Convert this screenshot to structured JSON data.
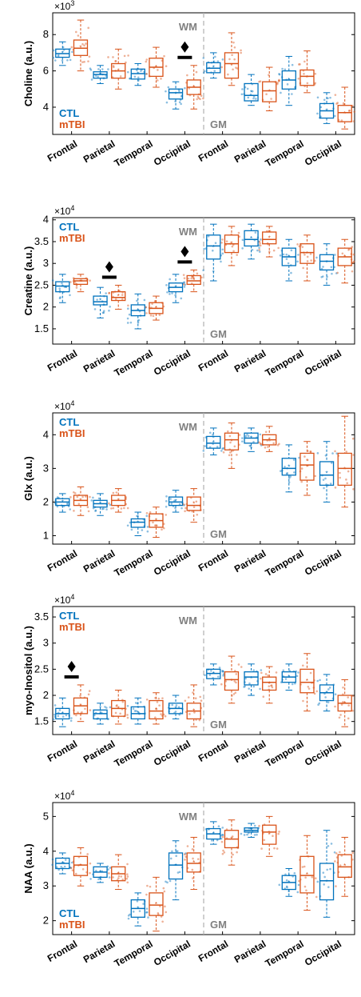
{
  "colors": {
    "ctl": "#0072BD",
    "mtbi": "#D95319",
    "divider": "#b0b0b0",
    "region_label": "#808080",
    "axis": "#000000"
  },
  "legend": {
    "ctl": "CTL",
    "mtbi": "mTBI"
  },
  "region_labels": {
    "wm": "WM",
    "gm": "GM"
  },
  "chart_data": [
    {
      "type": "box",
      "title": "",
      "ylabel": "Choline (a.u.)",
      "scale_label": "×10",
      "scale_exp": "3",
      "ylim": [
        2.5,
        9.2
      ],
      "yticks": [
        4,
        6,
        8
      ],
      "categories": [
        "Frontal",
        "Parietal",
        "Temporal",
        "Occipital",
        "Frontal",
        "Parietal",
        "Temporal",
        "Occipital"
      ],
      "regions": [
        "WM",
        "WM",
        "WM",
        "WM",
        "GM",
        "GM",
        "GM",
        "GM"
      ],
      "significance": [
        3
      ],
      "series": [
        {
          "name": "CTL",
          "boxes": [
            [
              6.3,
              6.75,
              6.95,
              7.2,
              7.6
            ],
            [
              5.3,
              5.6,
              5.8,
              5.95,
              6.3
            ],
            [
              5.2,
              5.55,
              5.85,
              6.1,
              6.4
            ],
            [
              3.9,
              4.45,
              4.8,
              5.0,
              5.4
            ],
            [
              5.6,
              5.9,
              6.15,
              6.45,
              7.0
            ],
            [
              4.1,
              4.35,
              4.65,
              5.3,
              5.8
            ],
            [
              4.1,
              5.0,
              5.5,
              6.0,
              6.8
            ],
            [
              3.1,
              3.4,
              3.8,
              4.2,
              4.8
            ]
          ]
        },
        {
          "name": "mTBI",
          "boxes": [
            [
              6.0,
              6.85,
              7.25,
              7.7,
              8.8
            ],
            [
              5.0,
              5.6,
              6.0,
              6.4,
              7.2
            ],
            [
              5.1,
              5.7,
              6.2,
              6.7,
              7.3
            ],
            [
              3.9,
              4.7,
              5.1,
              5.5,
              6.3
            ],
            [
              5.2,
              5.6,
              6.4,
              7.0,
              8.1
            ],
            [
              3.8,
              4.3,
              4.9,
              5.4,
              6.2
            ],
            [
              4.8,
              5.2,
              5.7,
              6.05,
              7.1
            ],
            [
              2.8,
              3.2,
              3.7,
              4.1,
              5.1
            ]
          ]
        }
      ]
    },
    {
      "type": "box",
      "title": "",
      "ylabel": "Creatine (a.u.)",
      "scale_label": "×10",
      "scale_exp": "4",
      "ylim": [
        1.15,
        4.05
      ],
      "yticks": [
        1.5,
        2,
        2.5,
        3,
        3.5,
        4
      ],
      "categories": [
        "Frontal",
        "Parietal",
        "Temporal",
        "Occipital",
        "Frontal",
        "Parietal",
        "Temporal",
        "Occipital"
      ],
      "regions": [
        "WM",
        "WM",
        "WM",
        "WM",
        "GM",
        "GM",
        "GM",
        "GM"
      ],
      "significance": [
        1,
        3
      ],
      "series": [
        {
          "name": "CTL",
          "boxes": [
            [
              2.1,
              2.35,
              2.48,
              2.58,
              2.75
            ],
            [
              1.75,
              2.05,
              2.12,
              2.25,
              2.45
            ],
            [
              1.5,
              1.8,
              1.92,
              2.05,
              2.3
            ],
            [
              2.1,
              2.35,
              2.45,
              2.55,
              2.75
            ],
            [
              2.6,
              3.1,
              3.4,
              3.65,
              3.9
            ],
            [
              3.1,
              3.4,
              3.55,
              3.75,
              3.9
            ],
            [
              2.6,
              2.95,
              3.15,
              3.35,
              3.55
            ],
            [
              2.5,
              2.85,
              3.05,
              3.2,
              3.45
            ]
          ]
        },
        {
          "name": "mTBI",
          "boxes": [
            [
              2.35,
              2.52,
              2.6,
              2.65,
              2.75
            ],
            [
              1.95,
              2.15,
              2.22,
              2.35,
              2.5
            ],
            [
              1.7,
              1.85,
              1.97,
              2.1,
              2.25
            ],
            [
              2.35,
              2.52,
              2.6,
              2.72,
              2.85
            ],
            [
              2.95,
              3.25,
              3.45,
              3.65,
              3.85
            ],
            [
              3.15,
              3.45,
              3.55,
              3.72,
              3.85
            ],
            [
              2.6,
              3.0,
              3.25,
              3.45,
              3.65
            ],
            [
              2.55,
              2.95,
              3.15,
              3.35,
              3.55
            ]
          ]
        }
      ]
    },
    {
      "type": "box",
      "title": "",
      "ylabel": "Glx (a.u.)",
      "scale_label": "×10",
      "scale_exp": "4",
      "ylim": [
        0.75,
        4.65
      ],
      "yticks": [
        1,
        2,
        3,
        4
      ],
      "categories": [
        "Frontal",
        "Parietal",
        "Temporal",
        "Occipital",
        "Frontal",
        "Parietal",
        "Temporal",
        "Occipital"
      ],
      "regions": [
        "WM",
        "WM",
        "WM",
        "WM",
        "GM",
        "GM",
        "GM",
        "GM"
      ],
      "significance": [],
      "series": [
        {
          "name": "CTL",
          "boxes": [
            [
              1.7,
              1.9,
              2.0,
              2.1,
              2.25
            ],
            [
              1.6,
              1.85,
              1.95,
              2.05,
              2.25
            ],
            [
              1.0,
              1.25,
              1.4,
              1.5,
              1.7
            ],
            [
              1.7,
              1.9,
              2.0,
              2.15,
              2.35
            ],
            [
              3.4,
              3.6,
              3.75,
              3.95,
              4.2
            ],
            [
              3.5,
              3.75,
              3.9,
              4.05,
              4.2
            ],
            [
              2.3,
              2.8,
              3.0,
              3.3,
              3.7
            ],
            [
              2.0,
              2.5,
              2.8,
              3.2,
              3.8
            ]
          ]
        },
        {
          "name": "mTBI",
          "boxes": [
            [
              1.6,
              1.9,
              2.05,
              2.2,
              2.45
            ],
            [
              1.7,
              1.9,
              2.05,
              2.2,
              2.4
            ],
            [
              0.95,
              1.25,
              1.45,
              1.65,
              1.85
            ],
            [
              1.4,
              1.75,
              1.9,
              2.15,
              2.4
            ],
            [
              3.0,
              3.55,
              3.85,
              4.05,
              4.35
            ],
            [
              3.5,
              3.7,
              3.85,
              4.0,
              4.25
            ],
            [
              2.2,
              2.65,
              3.1,
              3.45,
              3.8
            ],
            [
              1.85,
              2.5,
              3.0,
              3.45,
              4.55
            ]
          ]
        }
      ]
    },
    {
      "type": "box",
      "title": "",
      "ylabel": "myo-Inositol (a.u.)",
      "scale_label": "×10",
      "scale_exp": "4",
      "ylim": [
        1.25,
        3.7
      ],
      "yticks": [
        1.5,
        2,
        2.5,
        3,
        3.5
      ],
      "categories": [
        "Frontal",
        "Parietal",
        "Temporal",
        "Occipital",
        "Frontal",
        "Parietal",
        "Temporal",
        "Occipital"
      ],
      "regions": [
        "WM",
        "WM",
        "WM",
        "WM",
        "GM",
        "GM",
        "GM",
        "GM"
      ],
      "significance": [
        0
      ],
      "series": [
        {
          "name": "CTL",
          "boxes": [
            [
              1.4,
              1.55,
              1.65,
              1.75,
              1.95
            ],
            [
              1.45,
              1.55,
              1.65,
              1.72,
              1.85
            ],
            [
              1.45,
              1.55,
              1.65,
              1.78,
              1.95
            ],
            [
              1.55,
              1.65,
              1.75,
              1.85,
              2.0
            ],
            [
              2.2,
              2.32,
              2.42,
              2.5,
              2.6
            ],
            [
              2.0,
              2.2,
              2.35,
              2.45,
              2.6
            ],
            [
              2.1,
              2.25,
              2.35,
              2.45,
              2.6
            ],
            [
              1.7,
              1.9,
              2.05,
              2.2,
              2.4
            ]
          ]
        },
        {
          "name": "mTBI",
          "boxes": [
            [
              1.5,
              1.65,
              1.8,
              1.95,
              2.2
            ],
            [
              1.45,
              1.6,
              1.75,
              1.9,
              2.1
            ],
            [
              1.45,
              1.55,
              1.7,
              1.9,
              2.05
            ],
            [
              1.4,
              1.55,
              1.7,
              1.85,
              2.2
            ],
            [
              1.85,
              2.1,
              2.3,
              2.45,
              2.75
            ],
            [
              1.85,
              2.1,
              2.25,
              2.35,
              2.55
            ],
            [
              1.7,
              2.05,
              2.25,
              2.5,
              2.8
            ],
            [
              1.4,
              1.7,
              1.85,
              2.0,
              2.3
            ]
          ]
        }
      ]
    },
    {
      "type": "box",
      "title": "",
      "ylabel": "NAA (a.u.)",
      "scale_label": "×10",
      "scale_exp": "4",
      "ylim": [
        1.6,
        5.4
      ],
      "yticks": [
        2,
        3,
        4,
        5
      ],
      "categories": [
        "Frontal",
        "Parietal",
        "Temporal",
        "Occipital",
        "Frontal",
        "Parietal",
        "Temporal",
        "Occipital"
      ],
      "regions": [
        "WM",
        "WM",
        "WM",
        "WM",
        "GM",
        "GM",
        "GM",
        "GM"
      ],
      "significance": [],
      "series": [
        {
          "name": "CTL",
          "boxes": [
            [
              3.35,
              3.5,
              3.65,
              3.8,
              3.95
            ],
            [
              3.1,
              3.25,
              3.4,
              3.55,
              3.65
            ],
            [
              1.85,
              2.1,
              2.35,
              2.6,
              2.8
            ],
            [
              2.6,
              3.2,
              3.6,
              3.95,
              4.3
            ],
            [
              4.2,
              4.35,
              4.5,
              4.65,
              4.85
            ],
            [
              4.4,
              4.55,
              4.6,
              4.67,
              4.8
            ],
            [
              2.7,
              2.9,
              3.1,
              3.3,
              3.5
            ],
            [
              2.1,
              2.6,
              3.15,
              3.65,
              4.6
            ]
          ]
        },
        {
          "name": "mTBI",
          "boxes": [
            [
              3.0,
              3.3,
              3.6,
              3.85,
              4.1
            ],
            [
              2.9,
              3.15,
              3.35,
              3.55,
              3.9
            ],
            [
              1.7,
              2.15,
              2.45,
              2.8,
              3.25
            ],
            [
              2.9,
              3.4,
              3.65,
              3.95,
              4.4
            ],
            [
              3.6,
              4.1,
              4.35,
              4.6,
              4.9
            ],
            [
              3.85,
              4.2,
              4.55,
              4.75,
              5.0
            ],
            [
              2.3,
              2.8,
              3.3,
              3.85,
              4.45
            ],
            [
              2.7,
              3.25,
              3.55,
              3.9,
              4.4
            ]
          ]
        }
      ]
    }
  ]
}
